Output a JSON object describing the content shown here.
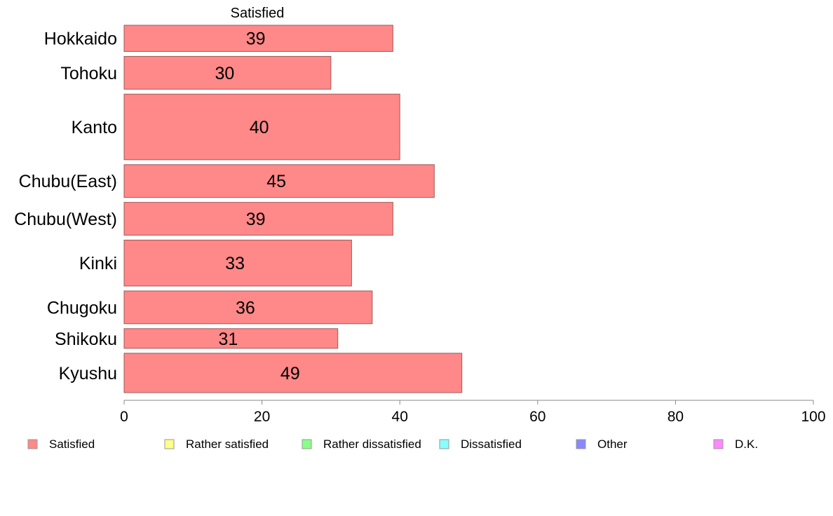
{
  "chart_data": {
    "type": "bar",
    "orientation": "horizontal",
    "title": "Satisfied",
    "categories": [
      "Hokkaido",
      "Tohoku",
      "Kanto",
      "Chubu(East)",
      "Chubu(West)",
      "Kinki",
      "Chugoku",
      "Shikoku",
      "Kyushu"
    ],
    "series": [
      {
        "name": "Satisfied",
        "values": [
          39,
          30,
          40,
          45,
          39,
          33,
          36,
          31,
          49
        ]
      }
    ],
    "data_labels": [
      "39",
      "30",
      "40",
      "45",
      "39",
      "33",
      "36",
      "31",
      "49"
    ],
    "bar_weights": [
      4,
      5,
      10,
      5,
      5,
      7,
      5,
      3,
      6
    ],
    "xlim": [
      0,
      100
    ],
    "x_ticks": [
      "0",
      "20",
      "40",
      "60",
      "80",
      "100"
    ],
    "xlabel": "",
    "ylabel": "",
    "grid": false,
    "legend_position": "bottom",
    "legend": [
      {
        "label": "Satisfied",
        "color": "#ff8888"
      },
      {
        "label": "Rather satisfied",
        "color": "#ffff88"
      },
      {
        "label": "Rather dissatisfied",
        "color": "#88ff88"
      },
      {
        "label": "Dissatisfied",
        "color": "#88ffff"
      },
      {
        "label": "Other",
        "color": "#8888ff"
      },
      {
        "label": "D.K.",
        "color": "#ff88ff"
      }
    ],
    "bar_color": "#ff8888",
    "bar_edge_color": "#a05a5a"
  }
}
